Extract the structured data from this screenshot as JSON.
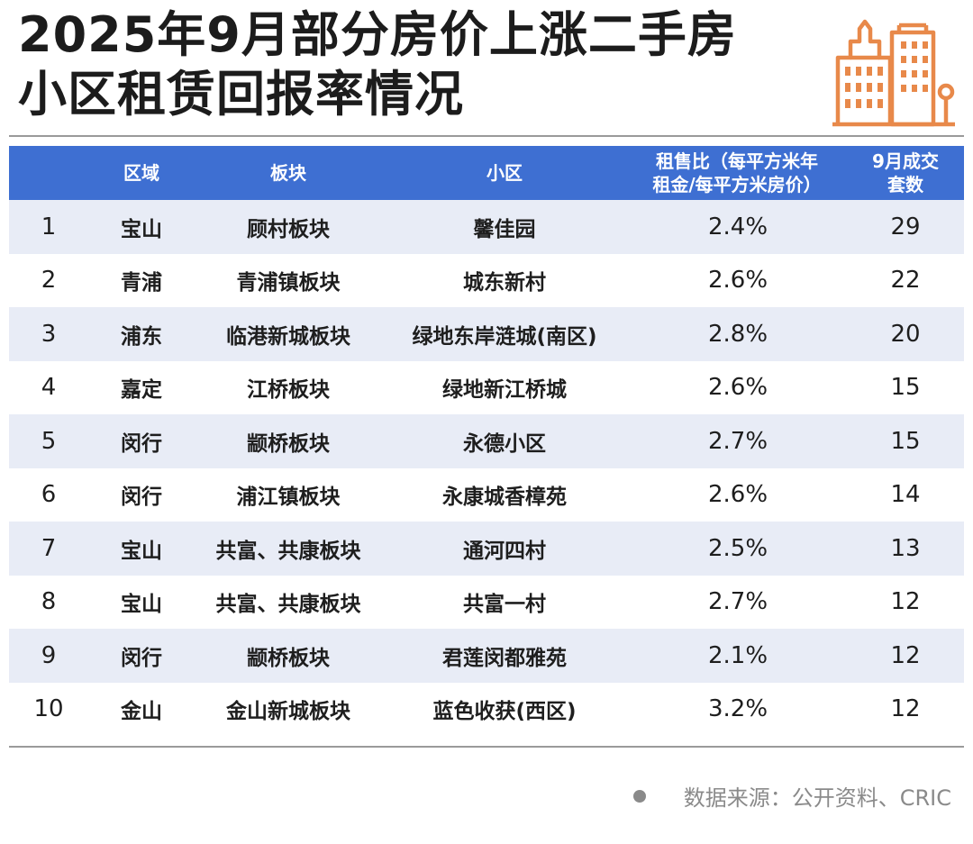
{
  "title": {
    "line1": "2025年9月部分房价上涨二手房",
    "line2": "小区租赁回报率情况"
  },
  "logo_icon": "city-buildings-icon",
  "colors": {
    "header_bg": "#3e6fd2",
    "stripe_bg": "#e8ecf6",
    "logo_orange": "#e8894a"
  },
  "table": {
    "headers": {
      "index": "",
      "district": "区域",
      "sector": "板块",
      "community": "小区",
      "ratio_line1": "租售比（每平方米年",
      "ratio_line2": "租金/每平方米房价）",
      "deals_line1": "9月成交",
      "deals_line2": "套数"
    },
    "rows": [
      {
        "index": "1",
        "district": "宝山",
        "sector": "顾村板块",
        "community": "馨佳园",
        "ratio": "2.4%",
        "deals": "29"
      },
      {
        "index": "2",
        "district": "青浦",
        "sector": "青浦镇板块",
        "community": "城东新村",
        "ratio": "2.6%",
        "deals": "22"
      },
      {
        "index": "3",
        "district": "浦东",
        "sector": "临港新城板块",
        "community": "绿地东岸涟城(南区)",
        "ratio": "2.8%",
        "deals": "20"
      },
      {
        "index": "4",
        "district": "嘉定",
        "sector": "江桥板块",
        "community": "绿地新江桥城",
        "ratio": "2.6%",
        "deals": "15"
      },
      {
        "index": "5",
        "district": "闵行",
        "sector": "颛桥板块",
        "community": "永德小区",
        "ratio": "2.7%",
        "deals": "15"
      },
      {
        "index": "6",
        "district": "闵行",
        "sector": "浦江镇板块",
        "community": "永康城香樟苑",
        "ratio": "2.6%",
        "deals": "14"
      },
      {
        "index": "7",
        "district": "宝山",
        "sector": "共富、共康板块",
        "community": "通河四村",
        "ratio": "2.5%",
        "deals": "13"
      },
      {
        "index": "8",
        "district": "宝山",
        "sector": "共富、共康板块",
        "community": "共富一村",
        "ratio": "2.7%",
        "deals": "12"
      },
      {
        "index": "9",
        "district": "闵行",
        "sector": "颛桥板块",
        "community": "君莲闵都雅苑",
        "ratio": "2.1%",
        "deals": "12"
      },
      {
        "index": "10",
        "district": "金山",
        "sector": "金山新城板块",
        "community": "蓝色收获(西区)",
        "ratio": "3.2%",
        "deals": "12"
      }
    ]
  },
  "source": "数据来源：公开资料、CRIC"
}
